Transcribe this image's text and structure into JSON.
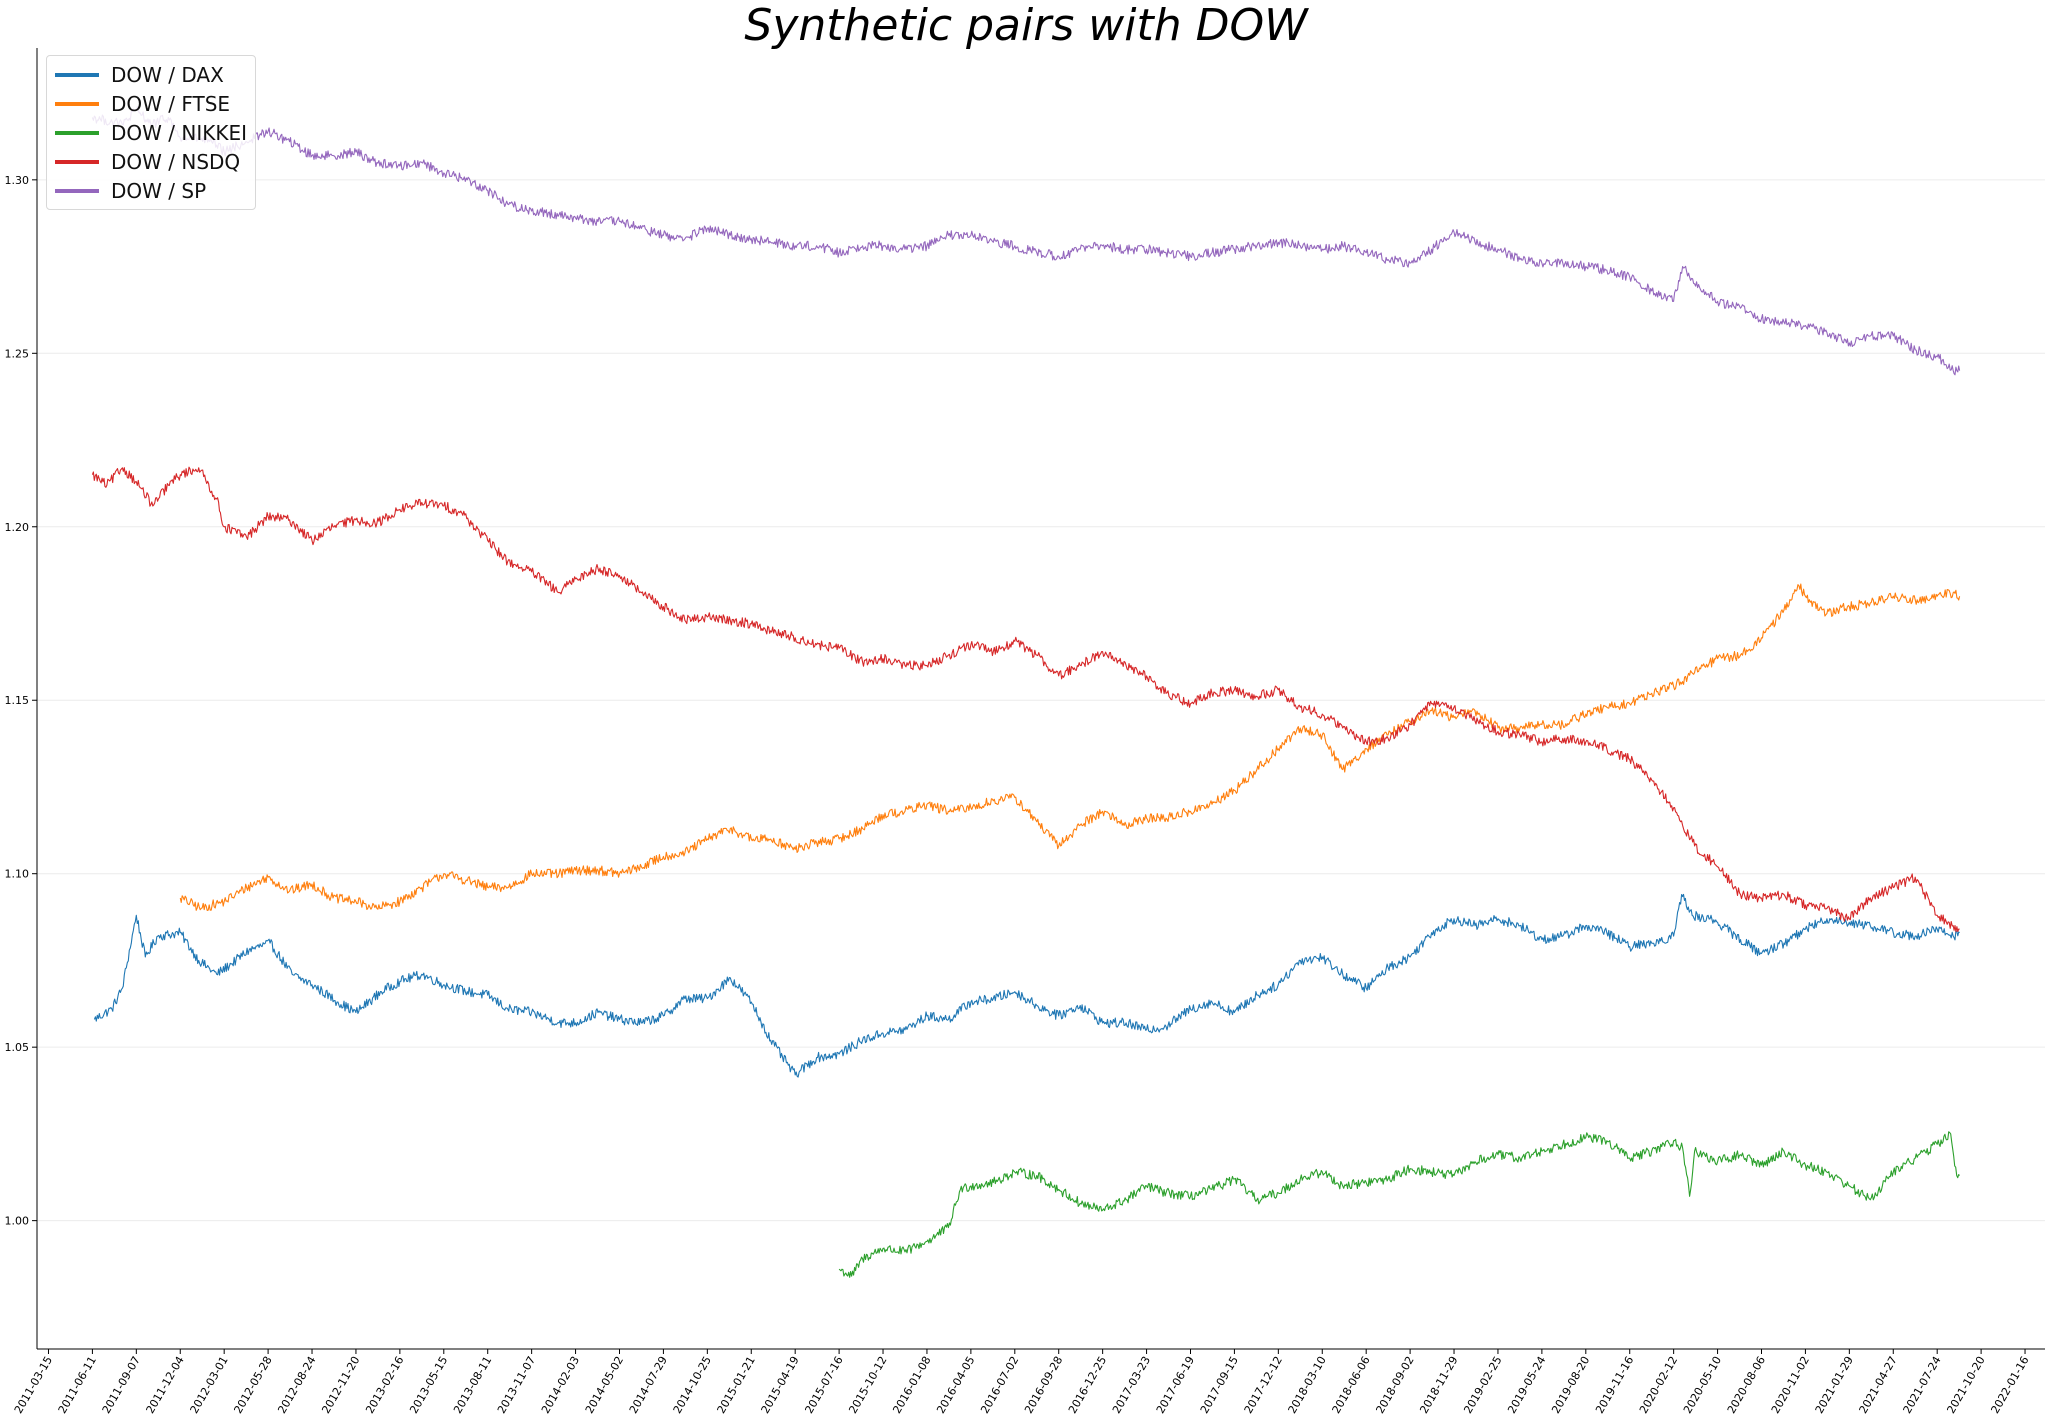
{
  "chart_data": {
    "type": "line",
    "title": "Synthetic pairs with DOW",
    "xlabel": "",
    "ylabel": "",
    "ylim": [
      0.963,
      1.338
    ],
    "xlim": [
      "2011-02-20",
      "2022-02-25"
    ],
    "grid": "horizontal, faint",
    "legend_position": "top-left",
    "y_ticks": [
      "1.00",
      "1.05",
      "1.10",
      "1.15",
      "1.20",
      "1.25",
      "1.30"
    ],
    "x_ticks": [
      "2011-03-15",
      "2011-06-11",
      "2011-09-07",
      "2011-12-04",
      "2012-03-01",
      "2012-05-28",
      "2012-08-24",
      "2012-11-20",
      "2013-02-16",
      "2013-05-15",
      "2013-08-11",
      "2013-11-07",
      "2014-02-03",
      "2014-05-02",
      "2014-07-29",
      "2014-10-25",
      "2015-01-21",
      "2015-04-19",
      "2015-07-16",
      "2015-10-12",
      "2016-01-08",
      "2016-04-05",
      "2016-07-02",
      "2016-09-28",
      "2016-12-25",
      "2017-03-23",
      "2017-06-19",
      "2017-09-15",
      "2017-12-12",
      "2018-03-10",
      "2018-06-06",
      "2018-09-02",
      "2018-11-29",
      "2019-02-25",
      "2019-05-24",
      "2019-08-20",
      "2019-11-16",
      "2020-02-12",
      "2020-05-10",
      "2020-08-06",
      "2020-11-02",
      "2021-01-29",
      "2021-04-27",
      "2021-07-24",
      "2021-10-20",
      "2022-01-16"
    ],
    "series": [
      {
        "name": "DOW / DAX",
        "color": "#1f77b4",
        "x": [
          "2011-06-15",
          "2011-07-20",
          "2011-08-10",
          "2011-09-07",
          "2011-09-25",
          "2011-10-20",
          "2011-12-04",
          "2012-01-10",
          "2012-02-15",
          "2012-03-15",
          "2012-04-20",
          "2012-06-01",
          "2012-07-15",
          "2012-08-24",
          "2012-10-15",
          "2012-11-20",
          "2013-01-10",
          "2013-02-16",
          "2013-04-01",
          "2013-05-15",
          "2013-07-01",
          "2013-08-11",
          "2013-09-20",
          "2013-11-07",
          "2014-01-01",
          "2014-02-03",
          "2014-03-20",
          "2014-05-02",
          "2014-06-15",
          "2014-07-29",
          "2014-09-10",
          "2014-10-25",
          "2014-12-10",
          "2015-01-21",
          "2015-03-01",
          "2015-04-19",
          "2015-06-01",
          "2015-07-16",
          "2015-09-01",
          "2015-10-12",
          "2015-11-25",
          "2016-01-08",
          "2016-02-20",
          "2016-04-05",
          "2016-05-20",
          "2016-07-02",
          "2016-08-15",
          "2016-09-28",
          "2016-11-10",
          "2016-12-25",
          "2017-02-10",
          "2017-03-23",
          "2017-05-01",
          "2017-06-19",
          "2017-08-01",
          "2017-09-15",
          "2017-10-30",
          "2017-12-12",
          "2018-01-25",
          "2018-03-10",
          "2018-04-20",
          "2018-06-06",
          "2018-07-20",
          "2018-09-02",
          "2018-10-15",
          "2018-11-29",
          "2019-01-10",
          "2019-02-25",
          "2019-04-10",
          "2019-05-24",
          "2019-07-05",
          "2019-08-20",
          "2019-10-01",
          "2019-11-16",
          "2019-12-30",
          "2020-02-12",
          "2020-02-28",
          "2020-03-20",
          "2020-04-25",
          "2020-05-10",
          "2020-06-25",
          "2020-08-06",
          "2020-09-20",
          "2020-11-02",
          "2020-12-15",
          "2021-01-29",
          "2021-03-12",
          "2021-04-27",
          "2021-06-10",
          "2021-07-24",
          "2021-08-25",
          "2021-09-07"
        ],
        "values": [
          1.058,
          1.061,
          1.067,
          1.088,
          1.076,
          1.082,
          1.083,
          1.075,
          1.071,
          1.074,
          1.078,
          1.08,
          1.071,
          1.068,
          1.063,
          1.06,
          1.066,
          1.069,
          1.071,
          1.068,
          1.066,
          1.065,
          1.061,
          1.06,
          1.057,
          1.057,
          1.06,
          1.058,
          1.057,
          1.059,
          1.064,
          1.064,
          1.07,
          1.063,
          1.052,
          1.042,
          1.047,
          1.048,
          1.052,
          1.054,
          1.055,
          1.059,
          1.058,
          1.063,
          1.064,
          1.066,
          1.062,
          1.059,
          1.062,
          1.057,
          1.057,
          1.055,
          1.056,
          1.061,
          1.063,
          1.06,
          1.065,
          1.068,
          1.075,
          1.076,
          1.071,
          1.067,
          1.073,
          1.076,
          1.083,
          1.087,
          1.085,
          1.087,
          1.085,
          1.081,
          1.082,
          1.085,
          1.083,
          1.079,
          1.08,
          1.082,
          1.094,
          1.088,
          1.087,
          1.086,
          1.081,
          1.077,
          1.08,
          1.084,
          1.087,
          1.086,
          1.085,
          1.083,
          1.082,
          1.084,
          1.082,
          1.083
        ]
      },
      {
        "name": "DOW / FTSE",
        "color": "#ff7f0e",
        "x": [
          "2011-12-04",
          "2012-01-15",
          "2012-03-01",
          "2012-04-15",
          "2012-05-28",
          "2012-07-10",
          "2012-08-24",
          "2012-10-05",
          "2012-11-20",
          "2013-01-01",
          "2013-02-16",
          "2013-04-01",
          "2013-05-15",
          "2013-07-01",
          "2013-08-11",
          "2013-09-20",
          "2013-11-07",
          "2014-01-01",
          "2014-02-03",
          "2014-03-20",
          "2014-05-02",
          "2014-06-15",
          "2014-07-29",
          "2014-09-10",
          "2014-10-25",
          "2014-12-10",
          "2015-01-21",
          "2015-03-01",
          "2015-04-19",
          "2015-06-01",
          "2015-07-16",
          "2015-09-01",
          "2015-10-12",
          "2015-11-25",
          "2016-01-08",
          "2016-02-20",
          "2016-04-05",
          "2016-05-20",
          "2016-07-02",
          "2016-08-15",
          "2016-09-28",
          "2016-11-10",
          "2016-12-25",
          "2017-02-10",
          "2017-03-23",
          "2017-05-01",
          "2017-06-19",
          "2017-08-01",
          "2017-09-15",
          "2017-10-30",
          "2017-12-12",
          "2018-01-25",
          "2018-03-10",
          "2018-04-20",
          "2018-06-06",
          "2018-07-20",
          "2018-09-02",
          "2018-10-15",
          "2018-11-29",
          "2019-01-10",
          "2019-02-25",
          "2019-04-10",
          "2019-05-24",
          "2019-07-05",
          "2019-08-20",
          "2019-10-01",
          "2019-11-16",
          "2019-12-30",
          "2020-02-12",
          "2020-03-25",
          "2020-05-10",
          "2020-06-25",
          "2020-08-06",
          "2020-09-20",
          "2020-10-20",
          "2020-11-02",
          "2020-12-15",
          "2021-01-29",
          "2021-03-12",
          "2021-04-27",
          "2021-06-10",
          "2021-07-24",
          "2021-08-25",
          "2021-09-07"
        ],
        "values": [
          1.093,
          1.09,
          1.092,
          1.096,
          1.099,
          1.095,
          1.097,
          1.093,
          1.092,
          1.09,
          1.092,
          1.096,
          1.1,
          1.098,
          1.096,
          1.096,
          1.1,
          1.1,
          1.101,
          1.101,
          1.1,
          1.102,
          1.105,
          1.106,
          1.11,
          1.113,
          1.11,
          1.11,
          1.107,
          1.109,
          1.11,
          1.113,
          1.117,
          1.118,
          1.12,
          1.118,
          1.119,
          1.121,
          1.122,
          1.115,
          1.108,
          1.114,
          1.118,
          1.114,
          1.116,
          1.116,
          1.118,
          1.12,
          1.124,
          1.13,
          1.136,
          1.142,
          1.14,
          1.13,
          1.136,
          1.14,
          1.144,
          1.147,
          1.145,
          1.147,
          1.142,
          1.142,
          1.143,
          1.143,
          1.146,
          1.148,
          1.149,
          1.152,
          1.154,
          1.158,
          1.162,
          1.163,
          1.168,
          1.176,
          1.183,
          1.18,
          1.175,
          1.177,
          1.178,
          1.18,
          1.179,
          1.18,
          1.181,
          1.18
        ]
      },
      {
        "name": "DOW / NIKKEI",
        "color": "#2ca02c",
        "x": [
          "2015-07-16",
          "2015-08-10",
          "2015-09-01",
          "2015-10-12",
          "2015-11-25",
          "2016-01-08",
          "2016-02-20",
          "2016-03-15",
          "2016-04-05",
          "2016-05-20",
          "2016-07-02",
          "2016-08-15",
          "2016-09-28",
          "2016-11-10",
          "2016-12-25",
          "2017-02-10",
          "2017-03-23",
          "2017-05-01",
          "2017-06-19",
          "2017-08-01",
          "2017-09-15",
          "2017-10-30",
          "2017-12-12",
          "2018-01-25",
          "2018-03-10",
          "2018-04-20",
          "2018-06-06",
          "2018-07-20",
          "2018-09-02",
          "2018-10-15",
          "2018-11-29",
          "2019-01-10",
          "2019-02-25",
          "2019-04-10",
          "2019-05-24",
          "2019-07-05",
          "2019-08-20",
          "2019-10-01",
          "2019-11-16",
          "2019-12-30",
          "2020-02-12",
          "2020-03-01",
          "2020-03-15",
          "2020-03-25",
          "2020-05-10",
          "2020-06-25",
          "2020-08-06",
          "2020-09-20",
          "2020-11-02",
          "2020-12-15",
          "2021-01-29",
          "2021-03-12",
          "2021-04-27",
          "2021-06-10",
          "2021-07-24",
          "2021-08-20",
          "2021-09-01",
          "2021-09-07"
        ],
        "values": [
          0.986,
          0.984,
          0.989,
          0.992,
          0.991,
          0.994,
          0.998,
          1.009,
          1.01,
          1.011,
          1.014,
          1.013,
          1.009,
          1.005,
          1.003,
          1.006,
          1.01,
          1.008,
          1.007,
          1.009,
          1.012,
          1.006,
          1.008,
          1.012,
          1.014,
          1.01,
          1.011,
          1.012,
          1.015,
          1.014,
          1.013,
          1.017,
          1.019,
          1.018,
          1.02,
          1.022,
          1.024,
          1.023,
          1.018,
          1.02,
          1.023,
          1.021,
          1.007,
          1.02,
          1.017,
          1.019,
          1.016,
          1.02,
          1.016,
          1.014,
          1.01,
          1.006,
          1.014,
          1.018,
          1.022,
          1.025,
          1.013,
          1.013
        ]
      },
      {
        "name": "DOW / NSDQ",
        "color": "#d62728",
        "x": [
          "2011-06-11",
          "2011-07-10",
          "2011-08-10",
          "2011-09-07",
          "2011-10-10",
          "2011-11-10",
          "2011-12-04",
          "2012-01-10",
          "2012-02-15",
          "2012-03-01",
          "2012-04-15",
          "2012-05-28",
          "2012-07-10",
          "2012-08-24",
          "2012-10-05",
          "2012-11-20",
          "2013-01-01",
          "2013-02-16",
          "2013-04-01",
          "2013-05-15",
          "2013-06-20",
          "2013-08-11",
          "2013-09-20",
          "2013-11-07",
          "2014-01-01",
          "2014-02-03",
          "2014-03-20",
          "2014-05-02",
          "2014-06-15",
          "2014-07-29",
          "2014-09-10",
          "2014-10-25",
          "2014-12-10",
          "2015-01-21",
          "2015-03-01",
          "2015-04-19",
          "2015-06-01",
          "2015-07-16",
          "2015-09-01",
          "2015-10-12",
          "2015-11-25",
          "2016-01-08",
          "2016-02-20",
          "2016-04-05",
          "2016-05-20",
          "2016-07-02",
          "2016-08-15",
          "2016-09-28",
          "2016-11-10",
          "2016-12-25",
          "2017-02-10",
          "2017-03-23",
          "2017-05-01",
          "2017-06-19",
          "2017-08-01",
          "2017-09-15",
          "2017-10-30",
          "2017-12-12",
          "2018-01-25",
          "2018-03-10",
          "2018-04-20",
          "2018-06-06",
          "2018-07-20",
          "2018-09-02",
          "2018-10-15",
          "2018-11-29",
          "2019-01-10",
          "2019-02-25",
          "2019-04-10",
          "2019-05-24",
          "2019-07-05",
          "2019-08-20",
          "2019-10-01",
          "2019-11-16",
          "2019-12-30",
          "2020-02-12",
          "2020-03-25",
          "2020-05-10",
          "2020-06-25",
          "2020-08-06",
          "2020-09-20",
          "2020-11-02",
          "2020-12-15",
          "2021-01-29",
          "2021-03-12",
          "2021-04-27",
          "2021-06-10",
          "2021-07-24",
          "2021-08-25",
          "2021-09-07"
        ],
        "values": [
          1.215,
          1.212,
          1.217,
          1.213,
          1.206,
          1.212,
          1.215,
          1.217,
          1.208,
          1.2,
          1.197,
          1.203,
          1.202,
          1.196,
          1.2,
          1.202,
          1.201,
          1.205,
          1.207,
          1.206,
          1.204,
          1.196,
          1.19,
          1.187,
          1.181,
          1.185,
          1.188,
          1.186,
          1.181,
          1.177,
          1.173,
          1.174,
          1.173,
          1.172,
          1.17,
          1.168,
          1.166,
          1.165,
          1.161,
          1.162,
          1.16,
          1.16,
          1.163,
          1.166,
          1.164,
          1.167,
          1.163,
          1.157,
          1.16,
          1.164,
          1.16,
          1.157,
          1.152,
          1.149,
          1.152,
          1.153,
          1.151,
          1.153,
          1.148,
          1.146,
          1.142,
          1.138,
          1.139,
          1.143,
          1.149,
          1.148,
          1.144,
          1.141,
          1.14,
          1.138,
          1.139,
          1.138,
          1.136,
          1.133,
          1.127,
          1.119,
          1.108,
          1.102,
          1.094,
          1.093,
          1.094,
          1.091,
          1.09,
          1.087,
          1.093,
          1.096,
          1.099,
          1.088,
          1.085,
          1.084
        ]
      },
      {
        "name": "DOW / SP",
        "color": "#9467bd",
        "x": [
          "2011-06-11",
          "2011-08-10",
          "2011-09-07",
          "2011-10-10",
          "2011-11-10",
          "2011-12-04",
          "2012-01-10",
          "2012-02-15",
          "2012-03-01",
          "2012-04-15",
          "2012-05-28",
          "2012-07-10",
          "2012-08-24",
          "2012-10-05",
          "2012-11-20",
          "2013-01-01",
          "2013-02-16",
          "2013-04-01",
          "2013-05-15",
          "2013-07-01",
          "2013-08-11",
          "2013-09-20",
          "2013-11-07",
          "2014-01-01",
          "2014-02-03",
          "2014-03-20",
          "2014-05-02",
          "2014-06-15",
          "2014-07-29",
          "2014-09-10",
          "2014-10-25",
          "2014-12-10",
          "2015-01-21",
          "2015-03-01",
          "2015-04-19",
          "2015-06-01",
          "2015-07-16",
          "2015-09-01",
          "2015-10-12",
          "2015-11-25",
          "2016-01-08",
          "2016-02-20",
          "2016-04-05",
          "2016-05-20",
          "2016-07-02",
          "2016-08-15",
          "2016-09-28",
          "2016-11-10",
          "2016-12-25",
          "2017-02-10",
          "2017-03-23",
          "2017-05-01",
          "2017-06-19",
          "2017-08-01",
          "2017-09-15",
          "2017-10-30",
          "2017-12-12",
          "2018-01-25",
          "2018-03-10",
          "2018-04-20",
          "2018-06-06",
          "2018-07-20",
          "2018-09-02",
          "2018-10-15",
          "2018-11-29",
          "2019-01-10",
          "2019-02-25",
          "2019-04-10",
          "2019-05-24",
          "2019-07-05",
          "2019-08-20",
          "2019-10-01",
          "2019-11-16",
          "2019-12-30",
          "2020-02-12",
          "2020-03-01",
          "2020-03-25",
          "2020-05-10",
          "2020-06-25",
          "2020-08-06",
          "2020-09-20",
          "2020-11-02",
          "2020-12-15",
          "2021-01-29",
          "2021-03-12",
          "2021-04-27",
          "2021-06-10",
          "2021-07-24",
          "2021-08-25",
          "2021-09-07"
        ],
        "values": [
          1.318,
          1.316,
          1.32,
          1.316,
          1.318,
          1.312,
          1.312,
          1.31,
          1.308,
          1.311,
          1.314,
          1.311,
          1.307,
          1.307,
          1.308,
          1.305,
          1.304,
          1.305,
          1.302,
          1.3,
          1.297,
          1.293,
          1.291,
          1.29,
          1.289,
          1.288,
          1.288,
          1.286,
          1.284,
          1.283,
          1.286,
          1.284,
          1.283,
          1.282,
          1.281,
          1.281,
          1.279,
          1.281,
          1.281,
          1.28,
          1.281,
          1.284,
          1.284,
          1.282,
          1.281,
          1.279,
          1.278,
          1.28,
          1.281,
          1.28,
          1.28,
          1.279,
          1.278,
          1.279,
          1.28,
          1.281,
          1.282,
          1.281,
          1.28,
          1.281,
          1.279,
          1.277,
          1.276,
          1.28,
          1.285,
          1.282,
          1.28,
          1.277,
          1.276,
          1.276,
          1.275,
          1.274,
          1.272,
          1.268,
          1.265,
          1.275,
          1.27,
          1.265,
          1.263,
          1.26,
          1.259,
          1.258,
          1.256,
          1.253,
          1.255,
          1.255,
          1.251,
          1.249,
          1.245,
          1.245
        ]
      }
    ]
  }
}
